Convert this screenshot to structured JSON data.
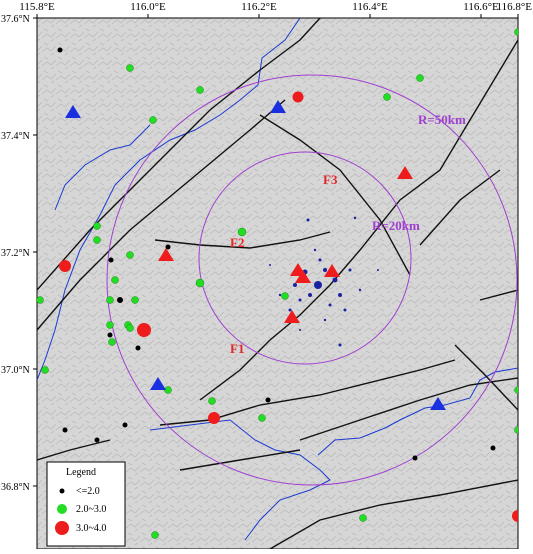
{
  "map": {
    "lon_ticks": [
      {
        "value": 115.8,
        "label": "115.8°E"
      },
      {
        "value": 116.0,
        "label": "116.0°E"
      },
      {
        "value": 116.2,
        "label": "116.2°E"
      },
      {
        "value": 116.4,
        "label": "116.4°E"
      },
      {
        "value": 116.6,
        "label": "116.6°E"
      },
      {
        "value": 116.8,
        "label": "116.8°E"
      }
    ],
    "lat_ticks": [
      {
        "value": 37.6,
        "label": "37.6°N"
      },
      {
        "value": 37.4,
        "label": "37.4°N"
      },
      {
        "value": 37.2,
        "label": "37.2°N"
      },
      {
        "value": 37.0,
        "label": "37.0°N"
      },
      {
        "value": 36.8,
        "label": "36.8°N"
      }
    ],
    "fault_labels": [
      "F1",
      "F2",
      "F3"
    ],
    "ring_labels": [
      "R=50km",
      "R=20km"
    ],
    "legend": {
      "title": "Legend",
      "entries": [
        "<=2.0",
        "2.0~3.0",
        "3.0~4.0"
      ]
    }
  }
}
